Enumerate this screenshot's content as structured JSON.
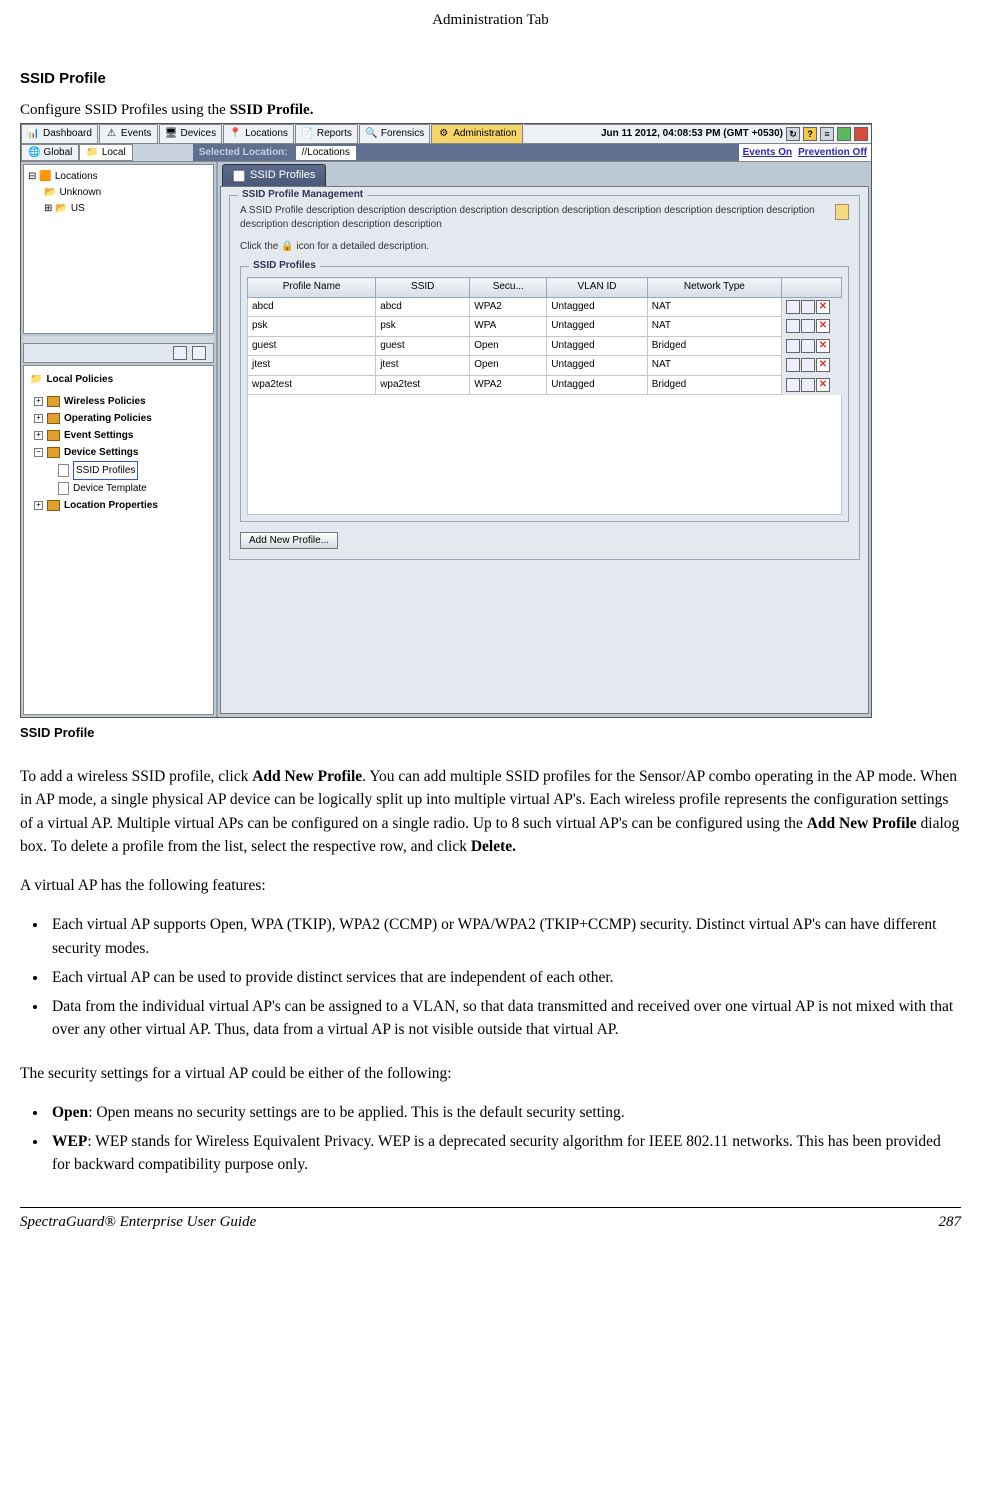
{
  "page": {
    "header": "Administration Tab",
    "section_heading": "SSID Profile",
    "intro_pre": "Configure SSID Profiles using the ",
    "intro_bold": "SSID Profile.",
    "caption": "SSID Profile",
    "page_number": "287",
    "footer_title": "SpectraGuard®  Enterprise User Guide"
  },
  "screenshot": {
    "tabs": [
      {
        "label": "Dashboard"
      },
      {
        "label": "Events"
      },
      {
        "label": "Devices"
      },
      {
        "label": "Locations"
      },
      {
        "label": "Reports"
      },
      {
        "label": "Forensics"
      },
      {
        "label": "Administration"
      }
    ],
    "timestamp": "Jun 11 2012, 04:08:53 PM (GMT +0530)",
    "location_tabs": {
      "global": "Global",
      "local": "Local"
    },
    "selected_location_label": "Selected Location:",
    "selected_location_value": "//Locations",
    "events_on": "Events On",
    "prevention_off": "Prevention Off",
    "tree": {
      "root": "Locations",
      "child1": "Unknown",
      "child2": "US"
    },
    "policies_title": "Local Policies",
    "policy_items": [
      {
        "label": "Wireless Policies"
      },
      {
        "label": "Operating Policies"
      },
      {
        "label": "Event Settings"
      },
      {
        "label": "Device Settings"
      },
      {
        "label": "Location Properties"
      }
    ],
    "device_sub": [
      {
        "label": "SSID Profiles",
        "selected": true
      },
      {
        "label": "Device Template",
        "selected": false
      }
    ],
    "content_tab": "SSID Profiles",
    "mgmt_legend": "SSID Profile Management",
    "mgmt_desc1": "A SSID Profile description description description description description description description description description description description description description description",
    "mgmt_desc2_pre": "Click the ",
    "mgmt_desc2_post": " icon for a detailed description.",
    "profiles_legend": "SSID Profiles",
    "table": {
      "columns": [
        "Profile Name",
        "SSID",
        "Secu...",
        "VLAN ID",
        "Network Type"
      ],
      "rows": [
        [
          "abcd",
          "abcd",
          "WPA2",
          "Untagged",
          "NAT"
        ],
        [
          "psk",
          "psk",
          "WPA",
          "Untagged",
          "NAT"
        ],
        [
          "guest",
          "guest",
          "Open",
          "Untagged",
          "Bridged"
        ],
        [
          "jtest",
          "jtest",
          "Open",
          "Untagged",
          "NAT"
        ],
        [
          "wpa2test",
          "wpa2test",
          "WPA2",
          "Untagged",
          "Bridged"
        ]
      ]
    },
    "add_btn": "Add New Profile..."
  },
  "body": {
    "p1_pre": "To add a wireless SSID profile, click ",
    "p1_b1": "Add New Profile",
    "p1_mid": ". You can add multiple SSID profiles for the Sensor/AP combo operating in the AP mode. When in AP mode, a single physical AP device can be logically split up into multiple virtual AP's. Each wireless profile represents the configuration settings of a virtual AP.  Multiple virtual APs can be configured on a single radio. Up to 8 such virtual AP's can be configured using the ",
    "p1_b2": "Add New Profile",
    "p1_mid2": " dialog box. To delete a profile from the list, select the respective row, and click ",
    "p1_b3": "Delete.",
    "p2": "A virtual AP has the following features:",
    "bullets1": [
      "Each virtual AP supports Open, WPA (TKIP), WPA2 (CCMP) or WPA/WPA2 (TKIP+CCMP) security. Distinct virtual AP's can have different security modes.",
      "Each virtual AP can be used to provide distinct services that are independent of each other.",
      "Data from the individual virtual AP's can be assigned to a VLAN, so that data transmitted and received over one virtual AP is not mixed with that over any other virtual AP. Thus, data from a virtual AP is not visible outside that virtual AP."
    ],
    "p3": "The security settings for a virtual AP could be either of the following:",
    "bullets2": [
      {
        "b": "Open",
        "t": ": Open means no security settings are to be applied. This is the default security setting."
      },
      {
        "b": "WEP",
        "t": ": WEP stands for Wireless Equivalent Privacy. WEP is a deprecated security algorithm for IEEE 802.11 networks. This has been provided for backward compatibility purpose only."
      }
    ]
  }
}
